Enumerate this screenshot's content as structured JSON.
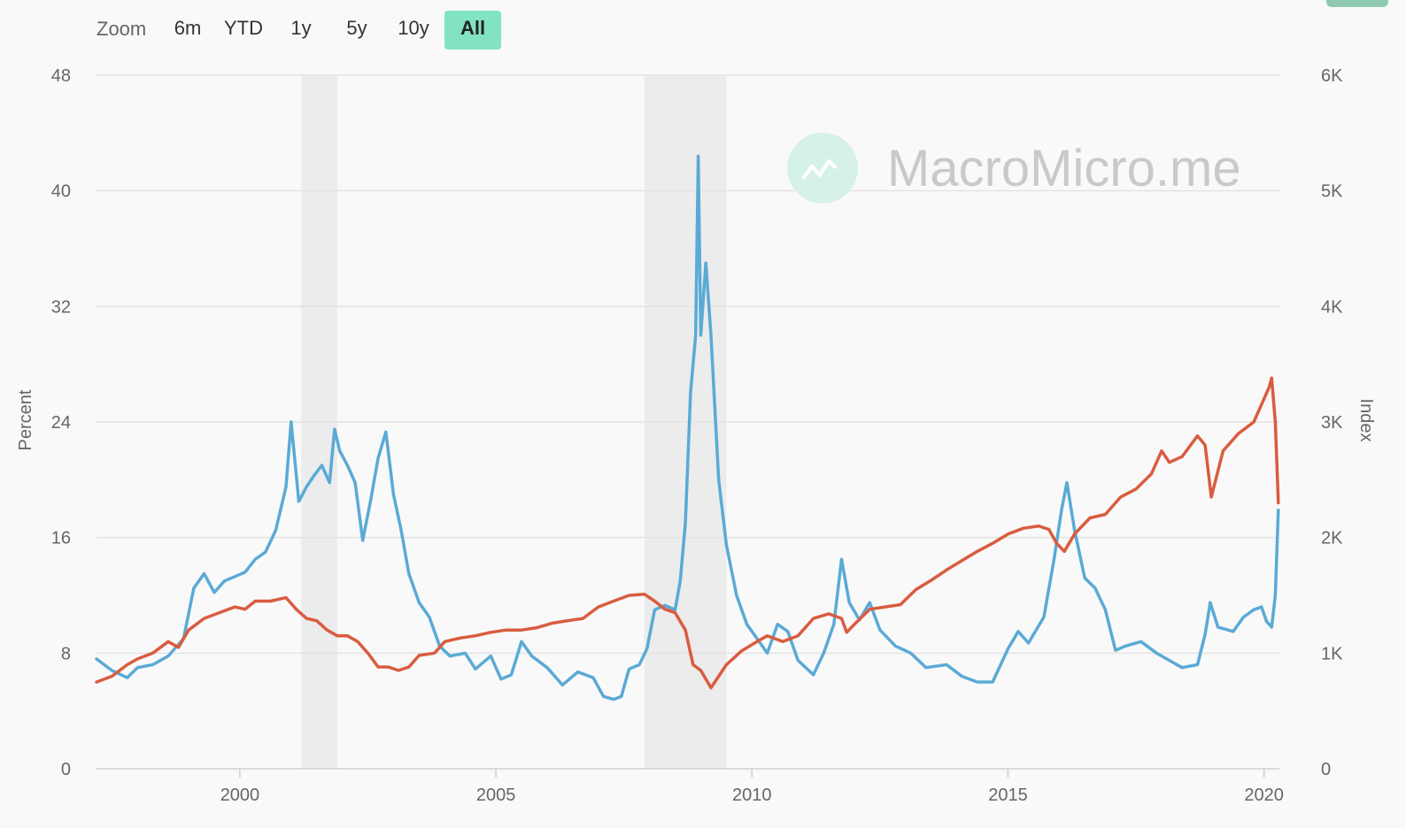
{
  "zoom": {
    "label": "Zoom",
    "buttons": [
      "6m",
      "YTD",
      "1y",
      "5y",
      "10y",
      "All"
    ],
    "active": "All"
  },
  "watermark": "MacroMicro.me",
  "chart_data": {
    "type": "line",
    "x_range": [
      1997.2,
      2020.3
    ],
    "x_ticks": [
      2000,
      2005,
      2010,
      2015,
      2020
    ],
    "y_left": {
      "label": "Percent",
      "range": [
        0,
        48
      ],
      "ticks": [
        0,
        8,
        16,
        24,
        32,
        40,
        48
      ]
    },
    "y_right": {
      "label": "Index",
      "range": [
        0,
        6000
      ],
      "ticks": [
        "0",
        "1K",
        "2K",
        "3K",
        "4K",
        "5K",
        "6K"
      ]
    },
    "grid": true,
    "recession_bands": [
      [
        2001.2,
        2001.9
      ],
      [
        2007.9,
        2009.5
      ]
    ],
    "series": [
      {
        "color": "#5aaad6",
        "axis": "left",
        "points": [
          [
            1997.2,
            7.6
          ],
          [
            1997.5,
            6.8
          ],
          [
            1997.8,
            6.3
          ],
          [
            1998.0,
            7.0
          ],
          [
            1998.3,
            7.2
          ],
          [
            1998.6,
            7.8
          ],
          [
            1998.9,
            9.0
          ],
          [
            1999.1,
            12.5
          ],
          [
            1999.3,
            13.5
          ],
          [
            1999.5,
            12.2
          ],
          [
            1999.7,
            13.0
          ],
          [
            1999.9,
            13.3
          ],
          [
            2000.1,
            13.6
          ],
          [
            2000.3,
            14.5
          ],
          [
            2000.5,
            15.0
          ],
          [
            2000.7,
            16.5
          ],
          [
            2000.9,
            19.5
          ],
          [
            2001.0,
            24.0
          ],
          [
            2001.15,
            18.5
          ],
          [
            2001.3,
            19.5
          ],
          [
            2001.45,
            20.3
          ],
          [
            2001.6,
            21.0
          ],
          [
            2001.75,
            19.8
          ],
          [
            2001.85,
            23.5
          ],
          [
            2001.95,
            22.0
          ],
          [
            2002.1,
            21.0
          ],
          [
            2002.25,
            19.8
          ],
          [
            2002.4,
            15.8
          ],
          [
            2002.55,
            18.5
          ],
          [
            2002.7,
            21.5
          ],
          [
            2002.85,
            23.3
          ],
          [
            2003.0,
            19.0
          ],
          [
            2003.15,
            16.5
          ],
          [
            2003.3,
            13.5
          ],
          [
            2003.5,
            11.5
          ],
          [
            2003.7,
            10.5
          ],
          [
            2003.9,
            8.5
          ],
          [
            2004.1,
            7.8
          ],
          [
            2004.4,
            8.0
          ],
          [
            2004.6,
            6.9
          ],
          [
            2004.9,
            7.8
          ],
          [
            2005.1,
            6.2
          ],
          [
            2005.3,
            6.5
          ],
          [
            2005.5,
            8.8
          ],
          [
            2005.7,
            7.8
          ],
          [
            2006.0,
            7.0
          ],
          [
            2006.3,
            5.8
          ],
          [
            2006.6,
            6.7
          ],
          [
            2006.9,
            6.3
          ],
          [
            2007.1,
            5.0
          ],
          [
            2007.3,
            4.8
          ],
          [
            2007.45,
            5.0
          ],
          [
            2007.6,
            6.9
          ],
          [
            2007.8,
            7.2
          ],
          [
            2007.95,
            8.3
          ],
          [
            2008.1,
            11.0
          ],
          [
            2008.3,
            11.3
          ],
          [
            2008.5,
            11.0
          ],
          [
            2008.6,
            13.0
          ],
          [
            2008.7,
            17.0
          ],
          [
            2008.8,
            26.0
          ],
          [
            2008.9,
            30.0
          ],
          [
            2008.95,
            42.4
          ],
          [
            2009.0,
            30.0
          ],
          [
            2009.1,
            35.0
          ],
          [
            2009.2,
            30.0
          ],
          [
            2009.35,
            20.0
          ],
          [
            2009.5,
            15.5
          ],
          [
            2009.7,
            12.0
          ],
          [
            2009.9,
            10.0
          ],
          [
            2010.1,
            9.0
          ],
          [
            2010.3,
            8.0
          ],
          [
            2010.5,
            10.0
          ],
          [
            2010.7,
            9.5
          ],
          [
            2010.9,
            7.5
          ],
          [
            2011.2,
            6.5
          ],
          [
            2011.4,
            8.0
          ],
          [
            2011.6,
            10.0
          ],
          [
            2011.75,
            14.5
          ],
          [
            2011.9,
            11.5
          ],
          [
            2012.1,
            10.3
          ],
          [
            2012.3,
            11.5
          ],
          [
            2012.5,
            9.6
          ],
          [
            2012.8,
            8.5
          ],
          [
            2013.1,
            8.0
          ],
          [
            2013.4,
            7.0
          ],
          [
            2013.8,
            7.2
          ],
          [
            2014.1,
            6.4
          ],
          [
            2014.4,
            6.0
          ],
          [
            2014.7,
            6.0
          ],
          [
            2015.0,
            8.3
          ],
          [
            2015.2,
            9.5
          ],
          [
            2015.4,
            8.7
          ],
          [
            2015.7,
            10.5
          ],
          [
            2015.9,
            14.5
          ],
          [
            2016.05,
            18.0
          ],
          [
            2016.15,
            19.8
          ],
          [
            2016.3,
            16.5
          ],
          [
            2016.5,
            13.2
          ],
          [
            2016.7,
            12.5
          ],
          [
            2016.9,
            11.0
          ],
          [
            2017.1,
            8.2
          ],
          [
            2017.3,
            8.5
          ],
          [
            2017.6,
            8.8
          ],
          [
            2017.9,
            8.0
          ],
          [
            2018.1,
            7.6
          ],
          [
            2018.4,
            7.0
          ],
          [
            2018.7,
            7.2
          ],
          [
            2018.85,
            9.3
          ],
          [
            2018.95,
            11.5
          ],
          [
            2019.1,
            9.8
          ],
          [
            2019.4,
            9.5
          ],
          [
            2019.6,
            10.5
          ],
          [
            2019.8,
            11.0
          ],
          [
            2019.95,
            11.2
          ],
          [
            2020.05,
            10.2
          ],
          [
            2020.15,
            9.8
          ],
          [
            2020.22,
            12.0
          ],
          [
            2020.28,
            17.9
          ]
        ]
      },
      {
        "color": "#d95c3f",
        "axis": "right",
        "points": [
          [
            1997.2,
            750
          ],
          [
            1997.5,
            800
          ],
          [
            1997.8,
            900
          ],
          [
            1998.0,
            950
          ],
          [
            1998.3,
            1000
          ],
          [
            1998.6,
            1100
          ],
          [
            1998.8,
            1050
          ],
          [
            1999.0,
            1200
          ],
          [
            1999.3,
            1300
          ],
          [
            1999.6,
            1350
          ],
          [
            1999.9,
            1400
          ],
          [
            2000.1,
            1380
          ],
          [
            2000.3,
            1450
          ],
          [
            2000.6,
            1450
          ],
          [
            2000.9,
            1480
          ],
          [
            2001.1,
            1380
          ],
          [
            2001.3,
            1300
          ],
          [
            2001.5,
            1280
          ],
          [
            2001.7,
            1200
          ],
          [
            2001.9,
            1150
          ],
          [
            2002.1,
            1150
          ],
          [
            2002.3,
            1100
          ],
          [
            2002.5,
            1000
          ],
          [
            2002.7,
            880
          ],
          [
            2002.9,
            880
          ],
          [
            2003.1,
            850
          ],
          [
            2003.3,
            880
          ],
          [
            2003.5,
            980
          ],
          [
            2003.8,
            1000
          ],
          [
            2004.0,
            1100
          ],
          [
            2004.3,
            1130
          ],
          [
            2004.6,
            1150
          ],
          [
            2004.9,
            1180
          ],
          [
            2005.2,
            1200
          ],
          [
            2005.5,
            1200
          ],
          [
            2005.8,
            1220
          ],
          [
            2006.1,
            1260
          ],
          [
            2006.4,
            1280
          ],
          [
            2006.7,
            1300
          ],
          [
            2007.0,
            1400
          ],
          [
            2007.3,
            1450
          ],
          [
            2007.6,
            1500
          ],
          [
            2007.9,
            1510
          ],
          [
            2008.1,
            1450
          ],
          [
            2008.3,
            1380
          ],
          [
            2008.5,
            1350
          ],
          [
            2008.7,
            1200
          ],
          [
            2008.85,
            900
          ],
          [
            2009.0,
            850
          ],
          [
            2009.2,
            700
          ],
          [
            2009.35,
            800
          ],
          [
            2009.5,
            900
          ],
          [
            2009.8,
            1020
          ],
          [
            2010.1,
            1100
          ],
          [
            2010.3,
            1150
          ],
          [
            2010.6,
            1100
          ],
          [
            2010.9,
            1150
          ],
          [
            2011.2,
            1300
          ],
          [
            2011.5,
            1340
          ],
          [
            2011.75,
            1300
          ],
          [
            2011.85,
            1180
          ],
          [
            2012.0,
            1250
          ],
          [
            2012.3,
            1380
          ],
          [
            2012.6,
            1400
          ],
          [
            2012.9,
            1420
          ],
          [
            2013.2,
            1550
          ],
          [
            2013.5,
            1630
          ],
          [
            2013.8,
            1720
          ],
          [
            2014.1,
            1800
          ],
          [
            2014.4,
            1880
          ],
          [
            2014.7,
            1950
          ],
          [
            2015.0,
            2030
          ],
          [
            2015.3,
            2080
          ],
          [
            2015.6,
            2100
          ],
          [
            2015.8,
            2070
          ],
          [
            2015.95,
            1950
          ],
          [
            2016.1,
            1880
          ],
          [
            2016.3,
            2030
          ],
          [
            2016.6,
            2170
          ],
          [
            2016.9,
            2200
          ],
          [
            2017.2,
            2350
          ],
          [
            2017.5,
            2420
          ],
          [
            2017.8,
            2550
          ],
          [
            2018.0,
            2750
          ],
          [
            2018.15,
            2650
          ],
          [
            2018.4,
            2700
          ],
          [
            2018.7,
            2880
          ],
          [
            2018.85,
            2800
          ],
          [
            2018.97,
            2350
          ],
          [
            2019.2,
            2750
          ],
          [
            2019.5,
            2900
          ],
          [
            2019.8,
            3000
          ],
          [
            2020.0,
            3200
          ],
          [
            2020.1,
            3300
          ],
          [
            2020.15,
            3380
          ],
          [
            2020.22,
            3000
          ],
          [
            2020.28,
            2300
          ]
        ]
      }
    ]
  }
}
